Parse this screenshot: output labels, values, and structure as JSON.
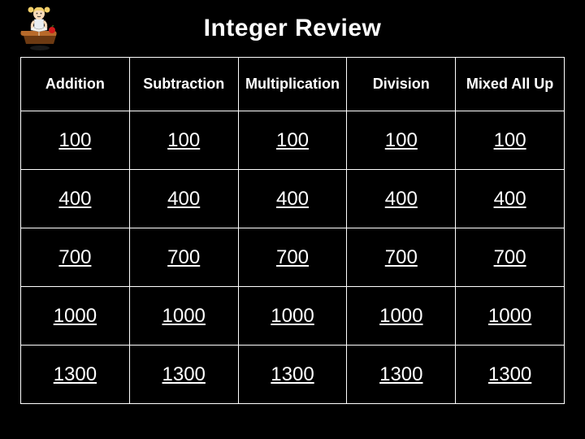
{
  "title": "Integer Review",
  "board": {
    "type": "table",
    "background_color": "#000000",
    "border_color": "#ffffff",
    "text_color": "#ffffff",
    "header_fontsize": 18,
    "cell_fontsize": 24,
    "columns": [
      "Addition",
      "Subtraction",
      "Multiplication",
      "Division",
      "Mixed All Up"
    ],
    "point_rows": [
      100,
      400,
      700,
      1000,
      1300
    ]
  },
  "decoration": {
    "icon_name": "character-on-book-icon",
    "colors": {
      "book_top": "#b86a2a",
      "book_side": "#6d3a12",
      "apple": "#d11a1a",
      "hair": "#f3cf6a",
      "face": "#f7d9b8",
      "dress": "#e9eef2",
      "outline": "#2a2a2a"
    }
  }
}
